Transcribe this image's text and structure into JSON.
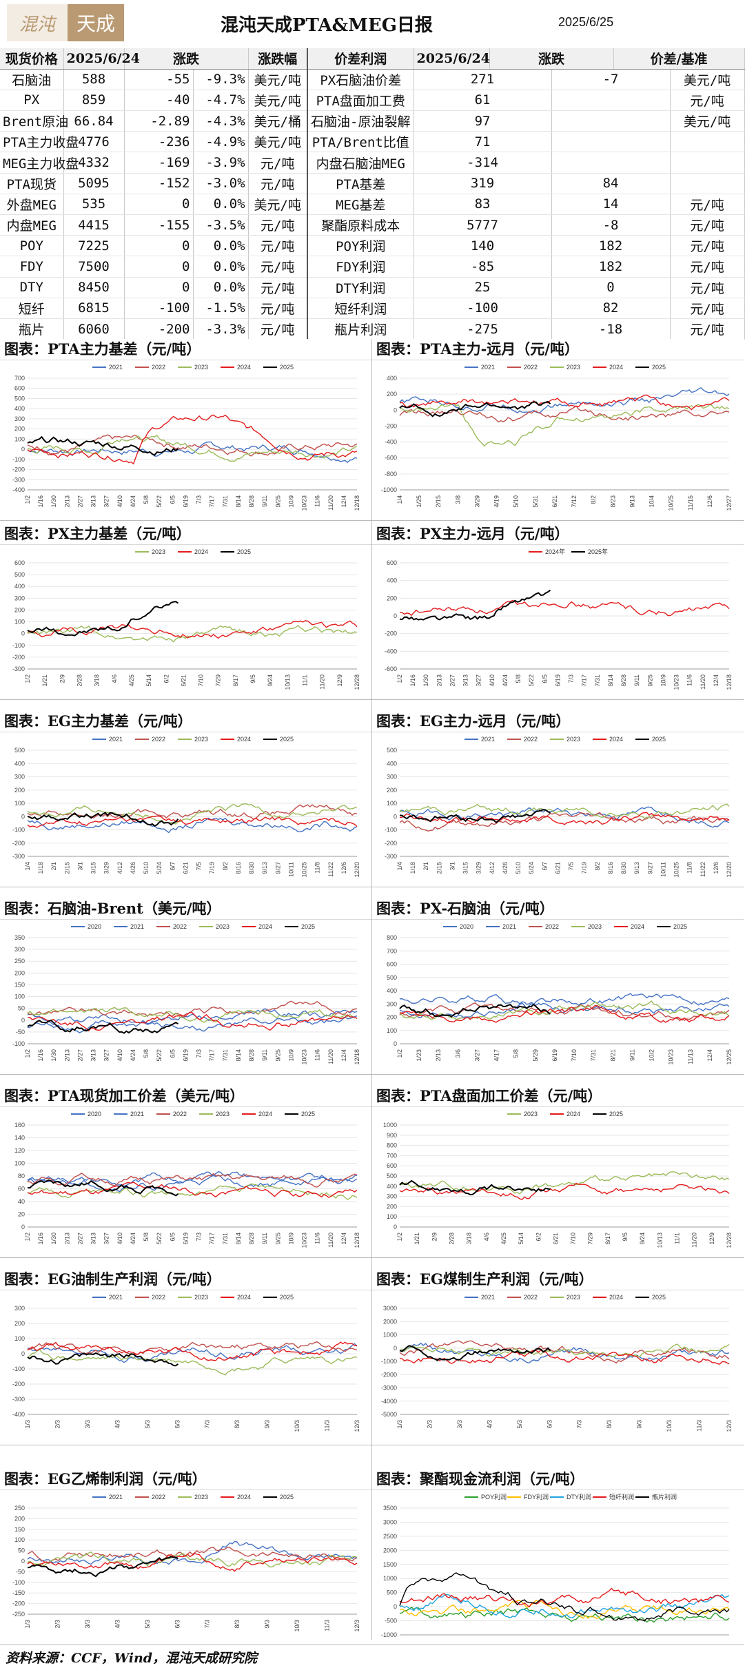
{
  "header": {
    "logo_left": "混沌",
    "logo_right": "天成",
    "title": "混沌天成PTA&MEG日报",
    "date": "2025/6/25"
  },
  "table": {
    "headers": [
      "现货价格",
      "2025/6/24",
      "涨跌",
      "涨跌幅",
      "价差利润",
      "2025/6/24",
      "涨跌",
      "价差/基准"
    ],
    "rows": [
      [
        "石脑油",
        "588",
        "-55",
        "-9.3%",
        "美元/吨",
        "PX石脑油价差",
        "271",
        "-7",
        "美元/吨"
      ],
      [
        "PX",
        "859",
        "-40",
        "-4.7%",
        "美元/吨",
        "PTA盘面加工费",
        "61",
        "",
        "元/吨"
      ],
      [
        "Brent原油",
        "66.84",
        "-2.89",
        "-4.3%",
        "美元/桶",
        "石脑油-原油裂解",
        "97",
        "",
        "美元/吨"
      ],
      [
        "PTA主力收盘",
        "4776",
        "-236",
        "-4.9%",
        "美元/吨",
        "PTA/Brent比值",
        "71",
        "",
        ""
      ],
      [
        "MEG主力收盘",
        "4332",
        "-169",
        "-3.9%",
        "元/吨",
        "内盘石脑油MEG",
        "-314",
        "",
        ""
      ],
      [
        "PTA现货",
        "5095",
        "-152",
        "-3.0%",
        "元/吨",
        "PTA基差",
        "319",
        "84",
        ""
      ],
      [
        "外盘MEG",
        "535",
        "0",
        "0.0%",
        "美元/吨",
        "MEG基差",
        "83",
        "14",
        "元/吨"
      ],
      [
        "内盘MEG",
        "4415",
        "-155",
        "-3.5%",
        "元/吨",
        "聚酯原料成本",
        "5777",
        "-8",
        "元/吨"
      ],
      [
        "POY",
        "7225",
        "0",
        "0.0%",
        "元/吨",
        "POY利润",
        "140",
        "182",
        "元/吨"
      ],
      [
        "FDY",
        "7500",
        "0",
        "0.0%",
        "元/吨",
        "FDY利润",
        "-85",
        "182",
        "元/吨"
      ],
      [
        "DTY",
        "8450",
        "0",
        "0.0%",
        "元/吨",
        "DTY利润",
        "25",
        "0",
        "元/吨"
      ],
      [
        "短纤",
        "6815",
        "-100",
        "-1.5%",
        "元/吨",
        "短纤利润",
        "-100",
        "82",
        "元/吨"
      ],
      [
        "瓶片",
        "6060",
        "-200",
        "-3.3%",
        "元/吨",
        "瓶片利润",
        "-275",
        "-18",
        "元/吨"
      ]
    ]
  },
  "colors": {
    "2020": "#4472c4",
    "2021": "#4472c4",
    "2022": "#c0504d",
    "2023": "#9bbb59",
    "2024": "#e41a1c",
    "2025": "#000000",
    "POY": "#2ca02c",
    "FDY": "#ffc000",
    "DTY": "#1fa3e0",
    "短纤": "#e41a1c",
    "瓶片": "#000000"
  },
  "chart_data": [
    {
      "id": "c1",
      "caption": "图表：PTA主力基差（元/吨）",
      "type": "line",
      "series": [
        {
          "name": "2021"
        },
        {
          "name": "2022"
        },
        {
          "name": "2023"
        },
        {
          "name": "2024"
        },
        {
          "name": "2025"
        }
      ],
      "yticks": [
        "700",
        "600",
        "500",
        "400",
        "300",
        "200",
        "100",
        "0",
        "-100",
        "-200",
        "-300",
        "-400"
      ],
      "ylim": [
        -400,
        700
      ],
      "xticks": [
        "1/2",
        "1/16",
        "1/30",
        "2/13",
        "2/27",
        "3/13",
        "3/27",
        "4/10",
        "4/24",
        "5/8",
        "5/22",
        "6/5",
        "6/19",
        "7/3",
        "7/17",
        "7/31",
        "8/14",
        "8/28",
        "9/11",
        "9/25",
        "10/9",
        "10/23",
        "11/6",
        "11/20",
        "12/4",
        "12/18"
      ]
    },
    {
      "id": "c2",
      "caption": "图表：PTA主力-远月（元/吨）",
      "type": "line",
      "series": [
        {
          "name": "2021"
        },
        {
          "name": "2022"
        },
        {
          "name": "2023"
        },
        {
          "name": "2024"
        },
        {
          "name": "2025"
        }
      ],
      "yticks": [
        "400",
        "200",
        "0",
        "-200",
        "-400",
        "-600",
        "-800",
        "-1000"
      ],
      "ylim": [
        -1000,
        400
      ],
      "xticks": [
        "1/4",
        "1/25",
        "2/15",
        "3/8",
        "3/29",
        "4/19",
        "5/10",
        "5/31",
        "6/21",
        "7/12",
        "8/2",
        "8/23",
        "9/13",
        "10/4",
        "10/25",
        "11/15",
        "12/6",
        "12/27"
      ]
    },
    {
      "id": "c3",
      "caption": "图表：PX主力基差（元/吨）",
      "type": "line",
      "series": [
        {
          "name": "2023"
        },
        {
          "name": "2024"
        },
        {
          "name": "2025"
        }
      ],
      "yticks": [
        "600",
        "500",
        "400",
        "300",
        "200",
        "100",
        "0",
        "-100",
        "-200",
        "-300"
      ],
      "ylim": [
        -300,
        600
      ],
      "xticks": [
        "1/2",
        "1/21",
        "2/9",
        "2/28",
        "3/18",
        "4/6",
        "4/25",
        "5/14",
        "6/2",
        "6/21",
        "7/10",
        "7/29",
        "8/17",
        "9/5",
        "9/24",
        "10/13",
        "11/1",
        "11/20",
        "12/9",
        "12/28"
      ]
    },
    {
      "id": "c4",
      "caption": "图表：PX主力-远月（元/吨）",
      "type": "line",
      "series": [
        {
          "name": "2024年"
        },
        {
          "name": "2025年"
        }
      ],
      "yticks": [
        "600",
        "400",
        "200",
        "0",
        "-200",
        "-400",
        "-600"
      ],
      "ylim": [
        -600,
        600
      ],
      "xticks": [
        "1/2",
        "1/16",
        "1/30",
        "2/13",
        "2/27",
        "3/13",
        "3/27",
        "4/10",
        "4/24",
        "5/8",
        "5/22",
        "6/5",
        "6/19",
        "7/3",
        "7/17",
        "7/31",
        "8/14",
        "8/28",
        "9/11",
        "9/25",
        "10/9",
        "10/23",
        "11/6",
        "11/20",
        "12/4",
        "12/18"
      ]
    },
    {
      "id": "c5",
      "caption": "图表：EG主力基差（元/吨）",
      "type": "line",
      "series": [
        {
          "name": "2021"
        },
        {
          "name": "2022"
        },
        {
          "name": "2023"
        },
        {
          "name": "2024"
        },
        {
          "name": "2025"
        }
      ],
      "yticks": [
        "500",
        "400",
        "300",
        "200",
        "100",
        "0",
        "-100",
        "-200",
        "-300"
      ],
      "ylim": [
        -300,
        500
      ],
      "xticks": [
        "1/4",
        "1/18",
        "2/1",
        "2/15",
        "3/1",
        "3/15",
        "3/29",
        "4/12",
        "4/26",
        "5/10",
        "5/24",
        "6/7",
        "6/21",
        "7/5",
        "7/19",
        "8/2",
        "8/16",
        "8/30",
        "9/13",
        "9/27",
        "10/11",
        "10/25",
        "11/8",
        "11/22",
        "12/6",
        "12/20"
      ]
    },
    {
      "id": "c6",
      "caption": "图表：EG主力-远月（元/吨）",
      "type": "line",
      "series": [
        {
          "name": "2021"
        },
        {
          "name": "2022"
        },
        {
          "name": "2023"
        },
        {
          "name": "2024"
        },
        {
          "name": "2025"
        }
      ],
      "yticks": [
        "500",
        "400",
        "300",
        "200",
        "100",
        "0",
        "-100",
        "-200",
        "-300"
      ],
      "ylim": [
        -300,
        500
      ],
      "xticks": [
        "1/4",
        "1/18",
        "2/1",
        "2/15",
        "3/1",
        "3/15",
        "3/29",
        "4/12",
        "4/26",
        "5/10",
        "5/24",
        "6/7",
        "6/21",
        "7/5",
        "7/19",
        "8/2",
        "8/16",
        "8/30",
        "9/13",
        "9/27",
        "10/11",
        "10/25",
        "11/8",
        "11/22",
        "12/6",
        "12/20"
      ]
    },
    {
      "id": "c7",
      "caption": "图表：石脑油-Brent（美元/吨）",
      "type": "line",
      "series": [
        {
          "name": "2020"
        },
        {
          "name": "2021"
        },
        {
          "name": "2022"
        },
        {
          "name": "2023"
        },
        {
          "name": "2024"
        },
        {
          "name": "2025"
        }
      ],
      "yticks": [
        "350",
        "300",
        "250",
        "200",
        "150",
        "100",
        "50",
        "0",
        "-50",
        "-100"
      ],
      "ylim": [
        -100,
        350
      ],
      "xticks": [
        "1/2",
        "1/16",
        "1/30",
        "2/13",
        "2/27",
        "3/13",
        "3/27",
        "4/10",
        "4/24",
        "5/8",
        "5/22",
        "6/5",
        "6/19",
        "7/3",
        "7/17",
        "7/31",
        "8/14",
        "8/28",
        "9/11",
        "9/25",
        "10/9",
        "10/23",
        "11/6",
        "11/20",
        "12/4",
        "12/18"
      ]
    },
    {
      "id": "c8",
      "caption": "图表：PX-石脑油（元/吨）",
      "type": "line",
      "series": [
        {
          "name": "2020"
        },
        {
          "name": "2021"
        },
        {
          "name": "2022"
        },
        {
          "name": "2023"
        },
        {
          "name": "2024"
        },
        {
          "name": "2025"
        }
      ],
      "yticks": [
        "800",
        "700",
        "600",
        "500",
        "400",
        "300",
        "200",
        "100",
        "0"
      ],
      "ylim": [
        0,
        800
      ],
      "xticks": [
        "1/2",
        "1/23",
        "2/13",
        "3/6",
        "3/27",
        "4/17",
        "5/8",
        "5/29",
        "6/19",
        "7/10",
        "7/31",
        "8/21",
        "9/11",
        "10/2",
        "10/23",
        "11/13",
        "12/4",
        "12/25"
      ]
    },
    {
      "id": "c9",
      "caption": "图表：PTA现货加工价差（美元/吨）",
      "type": "line",
      "series": [
        {
          "name": "2020"
        },
        {
          "name": "2021"
        },
        {
          "name": "2022"
        },
        {
          "name": "2023"
        },
        {
          "name": "2024"
        },
        {
          "name": "2025"
        }
      ],
      "yticks": [
        "160",
        "140",
        "120",
        "100",
        "80",
        "60",
        "40",
        "20",
        "0"
      ],
      "ylim": [
        0,
        160
      ],
      "xticks": [
        "1/2",
        "1/16",
        "1/30",
        "2/13",
        "2/27",
        "3/13",
        "3/27",
        "4/10",
        "4/24",
        "5/8",
        "5/22",
        "6/5",
        "6/19",
        "7/3",
        "7/17",
        "7/31",
        "8/14",
        "8/28",
        "9/11",
        "9/25",
        "10/9",
        "10/23",
        "11/6",
        "11/20",
        "12/4",
        "12/18"
      ]
    },
    {
      "id": "c10",
      "caption": "图表：PTA盘面加工价差（元/吨）",
      "type": "line",
      "series": [
        {
          "name": "2023"
        },
        {
          "name": "2024"
        },
        {
          "name": "2025"
        }
      ],
      "yticks": [
        "1000",
        "900",
        "800",
        "700",
        "600",
        "500",
        "400",
        "300",
        "200",
        "100",
        "0"
      ],
      "ylim": [
        0,
        1000
      ],
      "xticks": [
        "1/2",
        "1/21",
        "2/9",
        "2/28",
        "3/18",
        "4/6",
        "4/25",
        "5/14",
        "6/2",
        "6/21",
        "7/10",
        "7/29",
        "8/17",
        "9/5",
        "9/24",
        "10/13",
        "11/1",
        "11/20",
        "12/9",
        "12/28"
      ]
    },
    {
      "id": "c11",
      "caption": "图表：EG油制生产利润（元/吨）",
      "type": "line",
      "series": [
        {
          "name": "2021"
        },
        {
          "name": "2022"
        },
        {
          "name": "2023"
        },
        {
          "name": "2024"
        },
        {
          "name": "2025"
        }
      ],
      "yticks": [
        "300",
        "200",
        "100",
        "0",
        "-100",
        "-200",
        "-300",
        "-400"
      ],
      "ylim": [
        -400,
        300
      ],
      "xticks": [
        "1/3",
        "2/3",
        "3/3",
        "4/3",
        "5/3",
        "6/3",
        "7/3",
        "8/3",
        "9/3",
        "10/3",
        "11/3",
        "12/3"
      ]
    },
    {
      "id": "c12",
      "caption": "图表：EG煤制生产利润（元/吨）",
      "type": "line",
      "series": [
        {
          "name": "2021"
        },
        {
          "name": "2022"
        },
        {
          "name": "2023"
        },
        {
          "name": "2024"
        },
        {
          "name": "2025"
        }
      ],
      "yticks": [
        "3000",
        "2000",
        "1000",
        "0",
        "-1000",
        "-2000",
        "-3000",
        "-4000",
        "-5000"
      ],
      "ylim": [
        -5000,
        3000
      ],
      "xticks": [
        "1/3",
        "2/3",
        "3/3",
        "4/3",
        "5/3",
        "6/3",
        "7/3",
        "8/3",
        "9/3",
        "10/3",
        "11/3",
        "12/3"
      ]
    },
    {
      "id": "c13",
      "caption": "图表：EG乙烯制利润（元/吨）",
      "type": "line",
      "series": [
        {
          "name": "2021"
        },
        {
          "name": "2022"
        },
        {
          "name": "2023"
        },
        {
          "name": "2024"
        },
        {
          "name": "2025"
        }
      ],
      "yticks": [
        "250",
        "200",
        "150",
        "100",
        "50",
        "0",
        "-50",
        "-100",
        "-150",
        "-200",
        "-250"
      ],
      "ylim": [
        -250,
        250
      ],
      "xticks": [
        "1/3",
        "2/3",
        "3/3",
        "4/3",
        "5/3",
        "6/3",
        "7/3",
        "8/3",
        "9/3",
        "10/3",
        "11/3",
        "12/3"
      ]
    },
    {
      "id": "c14",
      "caption": "图表：聚酯现金流利润（元/吨）",
      "type": "line",
      "series": [
        {
          "name": "POY利润"
        },
        {
          "name": "FDY利润"
        },
        {
          "name": "DTY利润"
        },
        {
          "name": "短纤利润"
        },
        {
          "name": "瓶片利润"
        }
      ],
      "yticks": [
        "3500",
        "3000",
        "2500",
        "2000",
        "1500",
        "1000",
        "500",
        "0",
        "-500",
        "-1000"
      ],
      "ylim": [
        -1000,
        3500
      ],
      "xticks": []
    }
  ],
  "footer": "资料来源：CCF，Wind，混沌天成研究院"
}
